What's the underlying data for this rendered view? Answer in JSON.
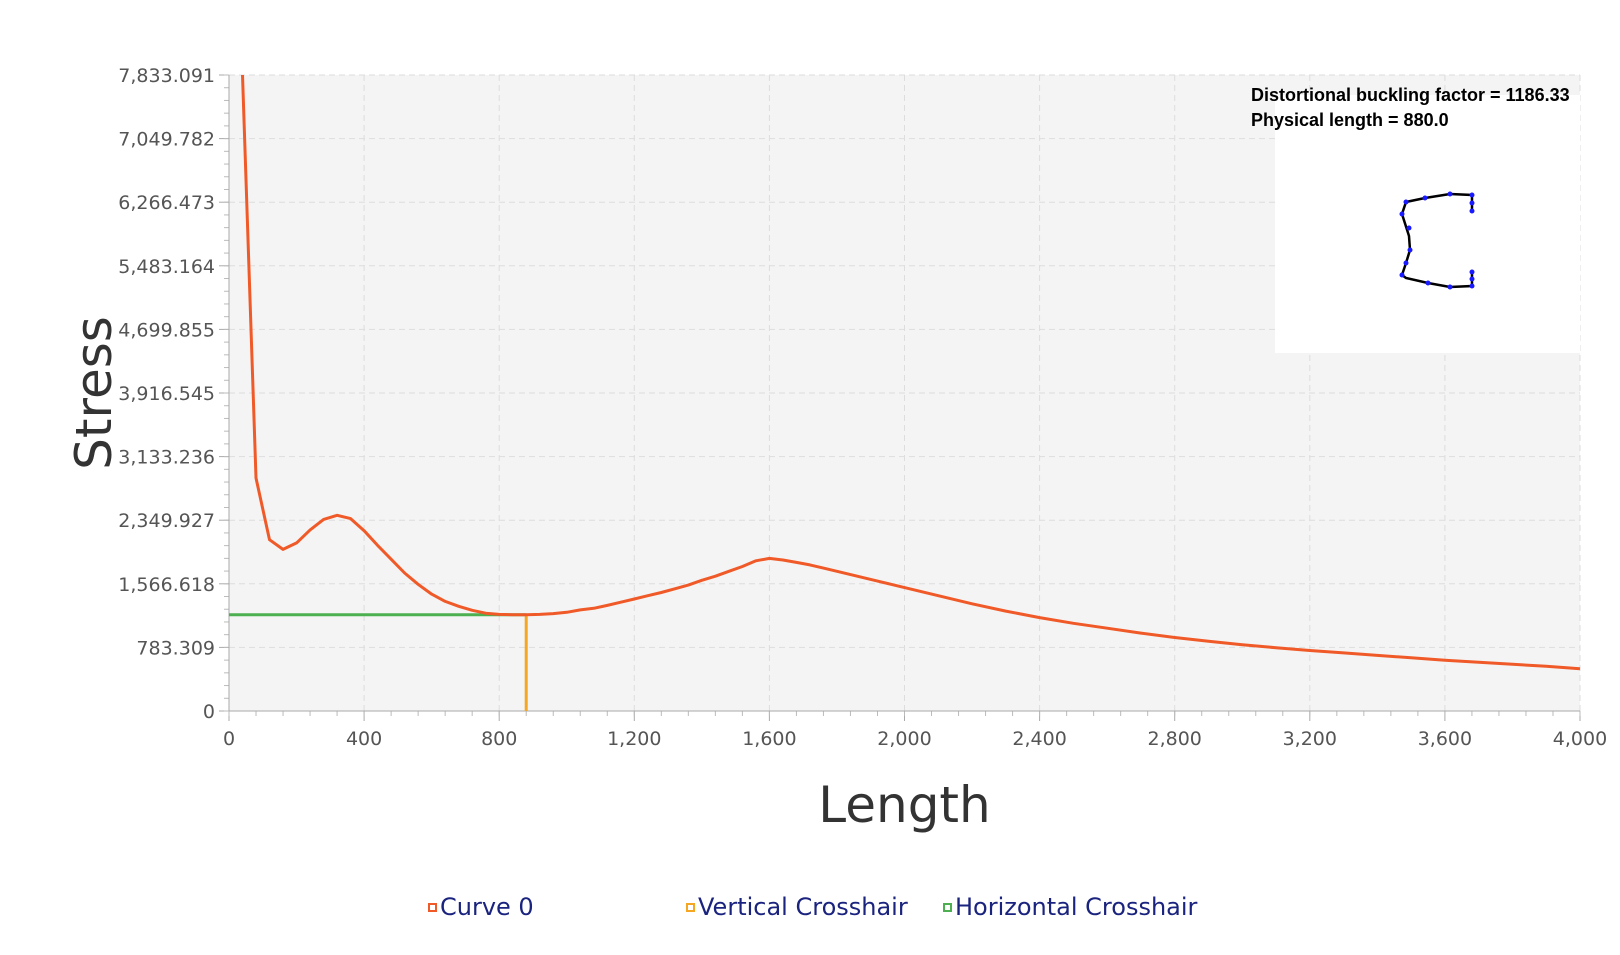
{
  "chart_data": {
    "type": "line",
    "xlabel": "Length",
    "ylabel": "Stress",
    "xlim": [
      0,
      4000
    ],
    "ylim": [
      0,
      7833.091
    ],
    "x_ticks": [
      0,
      400,
      800,
      1200,
      1600,
      2000,
      2400,
      2800,
      3200,
      3600,
      4000
    ],
    "x_tick_labels": [
      "0",
      "400",
      "800",
      "1,200",
      "1,600",
      "2,000",
      "2,400",
      "2,800",
      "3,200",
      "3,600",
      "4,000"
    ],
    "y_ticks": [
      0,
      783.309,
      1566.618,
      2349.927,
      3133.236,
      3916.545,
      4699.855,
      5483.164,
      6266.473,
      7049.782,
      7833.091
    ],
    "y_tick_labels": [
      "0",
      "783.309",
      "1,566.618",
      "2,349.927",
      "3,133.236",
      "3,916.545",
      "4,699.855",
      "5,483.164",
      "6,266.473",
      "7,049.782",
      "7,833.091"
    ],
    "grid": true,
    "legend_position": "bottom",
    "series": [
      {
        "name": "Curve 0",
        "color": "#f05a28",
        "x": [
          40,
          80,
          120,
          160,
          200,
          240,
          280,
          320,
          360,
          400,
          440,
          480,
          520,
          560,
          600,
          640,
          680,
          720,
          760,
          800,
          840,
          880,
          920,
          960,
          1000,
          1040,
          1080,
          1120,
          1160,
          1200,
          1240,
          1280,
          1320,
          1360,
          1400,
          1440,
          1480,
          1520,
          1560,
          1600,
          1640,
          1680,
          1720,
          1760,
          1800,
          1840,
          1880,
          1920,
          1960,
          2000,
          2100,
          2200,
          2300,
          2400,
          2500,
          2600,
          2700,
          2800,
          2900,
          3000,
          3100,
          3200,
          3300,
          3400,
          3500,
          3600,
          3700,
          3800,
          3900,
          4000
        ],
        "y": [
          7833,
          2870,
          2110,
          1990,
          2070,
          2230,
          2360,
          2410,
          2370,
          2220,
          2040,
          1870,
          1700,
          1560,
          1440,
          1350,
          1290,
          1240,
          1205,
          1190,
          1186,
          1186,
          1190,
          1200,
          1215,
          1245,
          1265,
          1300,
          1340,
          1380,
          1420,
          1460,
          1505,
          1550,
          1610,
          1660,
          1720,
          1780,
          1850,
          1880,
          1860,
          1830,
          1800,
          1760,
          1720,
          1680,
          1640,
          1600,
          1560,
          1520,
          1420,
          1320,
          1230,
          1150,
          1080,
          1020,
          960,
          905,
          860,
          815,
          780,
          745,
          715,
          685,
          655,
          625,
          600,
          575,
          550,
          520
        ]
      },
      {
        "name": "Vertical Crosshair",
        "color": "#f5a623",
        "x": [
          880,
          880
        ],
        "y": [
          0,
          1186.33
        ]
      },
      {
        "name": "Horizontal Crosshair",
        "color": "#4caf50",
        "x": [
          0,
          880
        ],
        "y": [
          1186.33,
          1186.33
        ]
      }
    ],
    "annotations": [
      "Distortional buckling factor = 1186.33",
      "Physical length = 880.0"
    ]
  }
}
